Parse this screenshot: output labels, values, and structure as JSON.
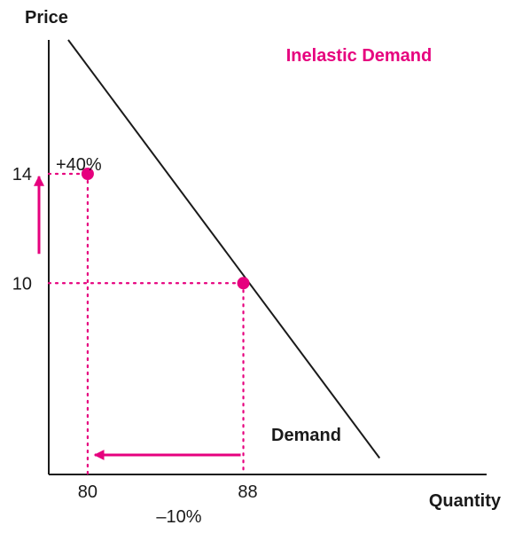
{
  "chart_data": {
    "type": "line",
    "title": "Inelastic Demand",
    "xlabel": "Quantity",
    "ylabel": "Price",
    "xlim": [
      78,
      100.5
    ],
    "ylim": [
      3,
      18.9
    ],
    "x_ticks": [
      "80",
      "88"
    ],
    "y_ticks": [
      "14",
      "10"
    ],
    "series": [
      {
        "name": "Demand",
        "x": [
          79,
          95
        ],
        "y": [
          18.9,
          3.6
        ]
      }
    ],
    "points": [
      {
        "x": 80,
        "y": 14
      },
      {
        "x": 88,
        "y": 10
      }
    ],
    "annotations": {
      "price_change": "+40%",
      "quantity_change": "–10%"
    },
    "grid": false,
    "colors": {
      "accent": "#e6007e",
      "line": "#1a1a1a"
    }
  }
}
